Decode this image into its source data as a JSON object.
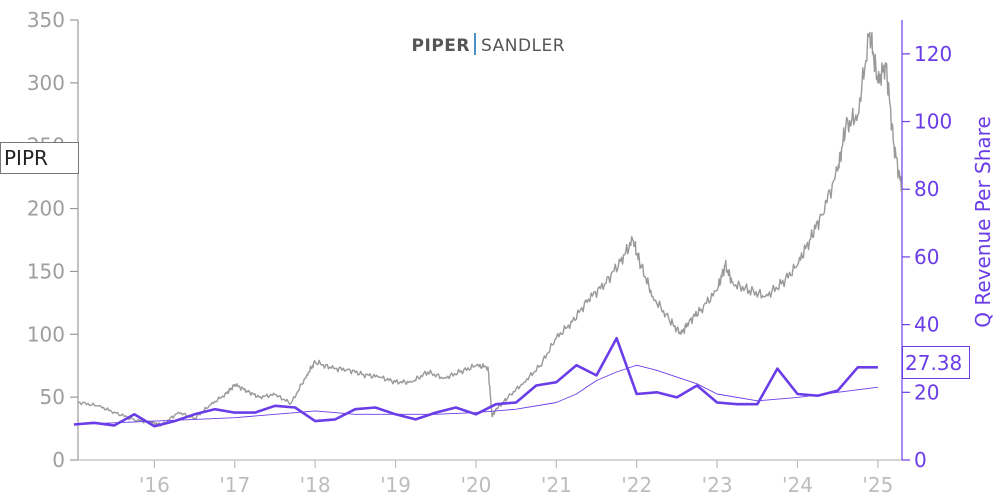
{
  "logo": {
    "part1": "PIPER",
    "part2": "SANDLER"
  },
  "ticker": "PIPR",
  "last_value_label": "27.38",
  "colors": {
    "price": "#999999",
    "revenue": "#6a3de8",
    "axis_left": "#999999",
    "axis_bottom": "#bdbdbd",
    "logo_bar": "#4a90c2"
  },
  "chart_data": {
    "type": "line",
    "xlabel": "",
    "ylabel_left": "",
    "ylabel_right": "Q Revenue Per Share",
    "x_ticks": [
      "'16",
      "'17",
      "'18",
      "'19",
      "'20",
      "'21",
      "'22",
      "'23",
      "'24",
      "'25"
    ],
    "x_tick_years": [
      2016,
      2017,
      2018,
      2019,
      2020,
      2021,
      2022,
      2023,
      2024,
      2025
    ],
    "xlim": [
      2015.05,
      2025.3
    ],
    "ylim_left": [
      0,
      350
    ],
    "ylim_right": [
      0,
      130
    ],
    "yticks_left": [
      0,
      50,
      100,
      150,
      200,
      250,
      300,
      350
    ],
    "yticks_right": [
      0,
      20,
      40,
      60,
      80,
      100,
      120
    ],
    "grid": false,
    "series": [
      {
        "name": "PIPR",
        "axis": "left",
        "x": [
          2015.05,
          2015.3,
          2015.5,
          2015.75,
          2015.95,
          2016.1,
          2016.3,
          2016.5,
          2016.7,
          2016.9,
          2017.0,
          2017.15,
          2017.3,
          2017.5,
          2017.7,
          2017.9,
          2018.0,
          2018.2,
          2018.4,
          2018.6,
          2018.8,
          2019.0,
          2019.2,
          2019.4,
          2019.6,
          2019.8,
          2020.0,
          2020.15,
          2020.2,
          2020.25,
          2020.4,
          2020.6,
          2020.8,
          2021.0,
          2021.2,
          2021.4,
          2021.6,
          2021.8,
          2021.95,
          2022.05,
          2022.2,
          2022.4,
          2022.55,
          2022.65,
          2022.8,
          2023.0,
          2023.1,
          2023.2,
          2023.4,
          2023.6,
          2023.8,
          2024.0,
          2024.15,
          2024.3,
          2024.5,
          2024.6,
          2024.75,
          2024.9,
          2025.0,
          2025.1,
          2025.2,
          2025.3
        ],
        "values": [
          46,
          43,
          38,
          32,
          30,
          28,
          38,
          33,
          44,
          53,
          60,
          55,
          50,
          52,
          45,
          68,
          78,
          73,
          72,
          68,
          66,
          62,
          62,
          70,
          65,
          70,
          75,
          74,
          35,
          40,
          50,
          62,
          75,
          97,
          110,
          128,
          140,
          158,
          175,
          155,
          130,
          112,
          100,
          110,
          120,
          135,
          155,
          140,
          135,
          130,
          140,
          155,
          175,
          195,
          230,
          265,
          275,
          340,
          300,
          315,
          250,
          215
        ]
      },
      {
        "name": "Q Revenue Per Share",
        "axis": "right",
        "x": [
          2015.0,
          2015.25,
          2015.5,
          2015.75,
          2016.0,
          2016.25,
          2016.5,
          2016.75,
          2017.0,
          2017.25,
          2017.5,
          2017.75,
          2018.0,
          2018.25,
          2018.5,
          2018.75,
          2019.0,
          2019.25,
          2019.5,
          2019.75,
          2020.0,
          2020.25,
          2020.5,
          2020.75,
          2021.0,
          2021.25,
          2021.5,
          2021.75,
          2022.0,
          2022.25,
          2022.5,
          2022.75,
          2023.0,
          2023.25,
          2023.5,
          2023.75,
          2024.0,
          2024.25,
          2024.5,
          2024.75,
          2025.0
        ],
        "values": [
          10.5,
          11.0,
          10.2,
          13.5,
          10.0,
          11.5,
          13.5,
          15.0,
          14.0,
          14.0,
          16.0,
          15.5,
          11.5,
          12.0,
          15.0,
          15.5,
          13.5,
          12.0,
          14.0,
          15.5,
          13.5,
          16.5,
          17.0,
          22.0,
          23.0,
          28.0,
          25.0,
          36.0,
          19.5,
          20.0,
          18.5,
          22.0,
          17.0,
          16.5,
          16.5,
          27.0,
          19.5,
          19.0,
          20.5,
          27.38,
          27.38
        ]
      },
      {
        "name": "",
        "axis": "right",
        "x": [
          2015.0,
          2015.5,
          2016.0,
          2016.5,
          2017.0,
          2017.5,
          2018.0,
          2018.5,
          2019.0,
          2019.5,
          2020.0,
          2020.5,
          2021.0,
          2021.25,
          2021.5,
          2021.75,
          2022.0,
          2022.25,
          2022.5,
          2022.75,
          2023.0,
          2023.5,
          2024.0,
          2024.5,
          2025.0
        ],
        "values": [
          10.5,
          11.0,
          11.5,
          12.0,
          12.5,
          13.5,
          14.5,
          13.5,
          13.5,
          13.5,
          14.0,
          15.0,
          17.0,
          19.5,
          23.5,
          26.0,
          28.0,
          26.5,
          24.5,
          22.5,
          19.5,
          17.5,
          18.5,
          20.0,
          21.5
        ]
      }
    ]
  }
}
